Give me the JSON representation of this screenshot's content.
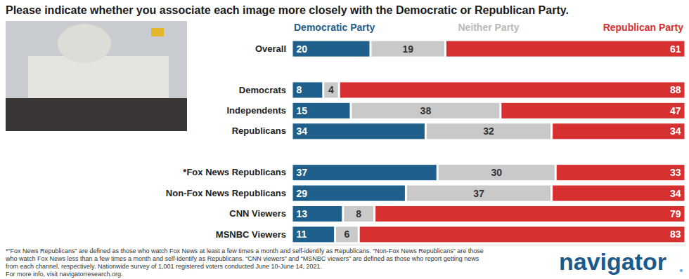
{
  "chart_data": {
    "type": "bar",
    "title": "Please indicate whether you associate each image more closely with the Democratic or Republican Party.",
    "orientation": "horizontal",
    "stacked": true,
    "data_labels": true,
    "tick_labels": false,
    "xlim": [
      0,
      100
    ],
    "categories": [
      "Overall",
      null,
      "Democrats",
      "Independents",
      "Republicans",
      null,
      "*Fox News Republicans",
      "Non-Fox News Republicans",
      "CNN Viewers",
      "MSNBC Viewers"
    ],
    "series": [
      {
        "name": "Democratic Party",
        "color": "#1f5f8b",
        "values": [
          20,
          null,
          8,
          15,
          34,
          null,
          37,
          29,
          13,
          11
        ]
      },
      {
        "name": "Neither Party",
        "color": "#c9c9c9",
        "values": [
          19,
          null,
          4,
          38,
          32,
          null,
          30,
          37,
          8,
          6
        ]
      },
      {
        "name": "Republican Party",
        "color": "#d63031",
        "values": [
          61,
          null,
          88,
          47,
          34,
          null,
          33,
          34,
          79,
          83
        ]
      }
    ],
    "footnote": [
      "*“Fox News Republicans” are defined as those who watch Fox News at least a few times a month and self-identify as Republicans. “Non-Fox News Republicans” are those",
      "who watch Fox News less than a few times a month and self-identify as Republicans. “CNN viewers” and “MSNBC viewers” are defined as those who report getting news",
      "from each channel, respectively. Nationwide survey of 1,001 registered voters conducted June 10-June 14, 2021.",
      "For more info, visit navigatorresearch.org."
    ],
    "logo_text": "navigator"
  }
}
